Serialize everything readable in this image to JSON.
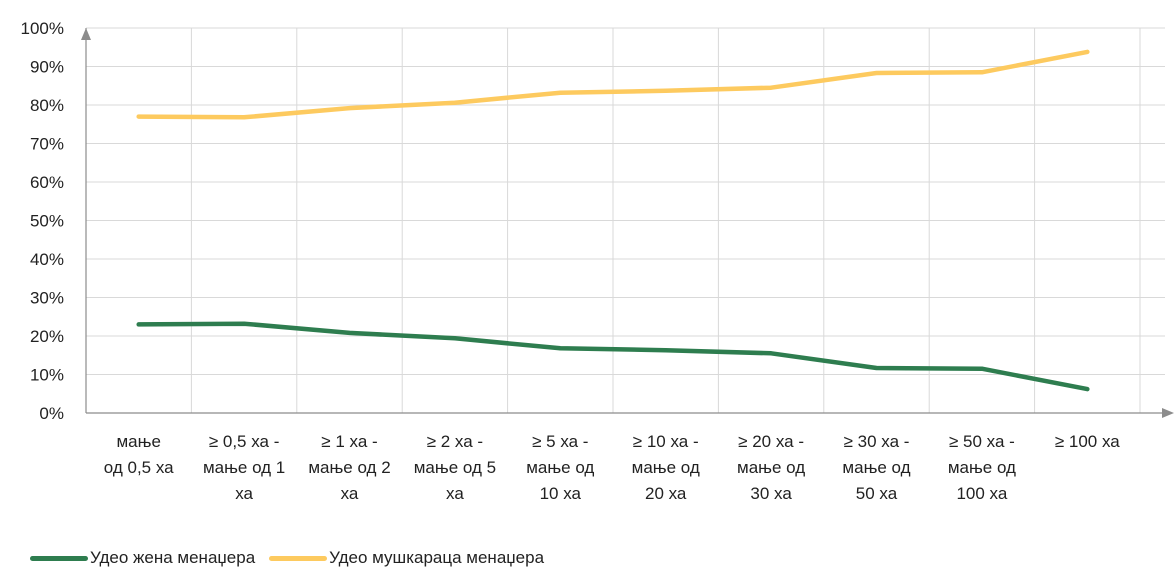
{
  "chart_data": {
    "type": "line",
    "categories": [
      [
        "мање",
        "од  0,5 ха"
      ],
      [
        "≥ 0,5 ха -",
        "мање од 1",
        "ха"
      ],
      [
        "≥ 1 ха -",
        "мање од 2",
        "ха"
      ],
      [
        "≥ 2 ха -",
        "мање од 5",
        "ха"
      ],
      [
        "≥ 5 ха -",
        "мање од",
        "10 ха"
      ],
      [
        "≥ 10 ха -",
        "мање од",
        "20 ха"
      ],
      [
        "≥ 20 ха -",
        "мање од",
        "30 ха"
      ],
      [
        "≥ 30 ха -",
        "мање од",
        "50 ха"
      ],
      [
        "≥ 50 ха -",
        "мање од",
        "100 ха"
      ],
      [
        "≥ 100 ха"
      ]
    ],
    "series": [
      {
        "name": "Удео жена менаџера",
        "color": "#2e7d4f",
        "values": [
          23,
          23.2,
          20.8,
          19.4,
          16.8,
          16.3,
          15.5,
          11.7,
          11.5,
          6.2
        ]
      },
      {
        "name": "Удео мушкараца менаџера",
        "color": "#fdca5f",
        "values": [
          77,
          76.8,
          79.2,
          80.6,
          83.2,
          83.7,
          84.5,
          88.3,
          88.5,
          93.8
        ]
      }
    ],
    "ylim": [
      0,
      100
    ],
    "yticks": [
      "0%",
      "10%",
      "20%",
      "30%",
      "40%",
      "50%",
      "60%",
      "70%",
      "80%",
      "90%",
      "100%"
    ],
    "grid": true,
    "legend_position": "bottom-left",
    "axis_color": "#8c8c8c",
    "grid_color": "#d9d9d9"
  }
}
